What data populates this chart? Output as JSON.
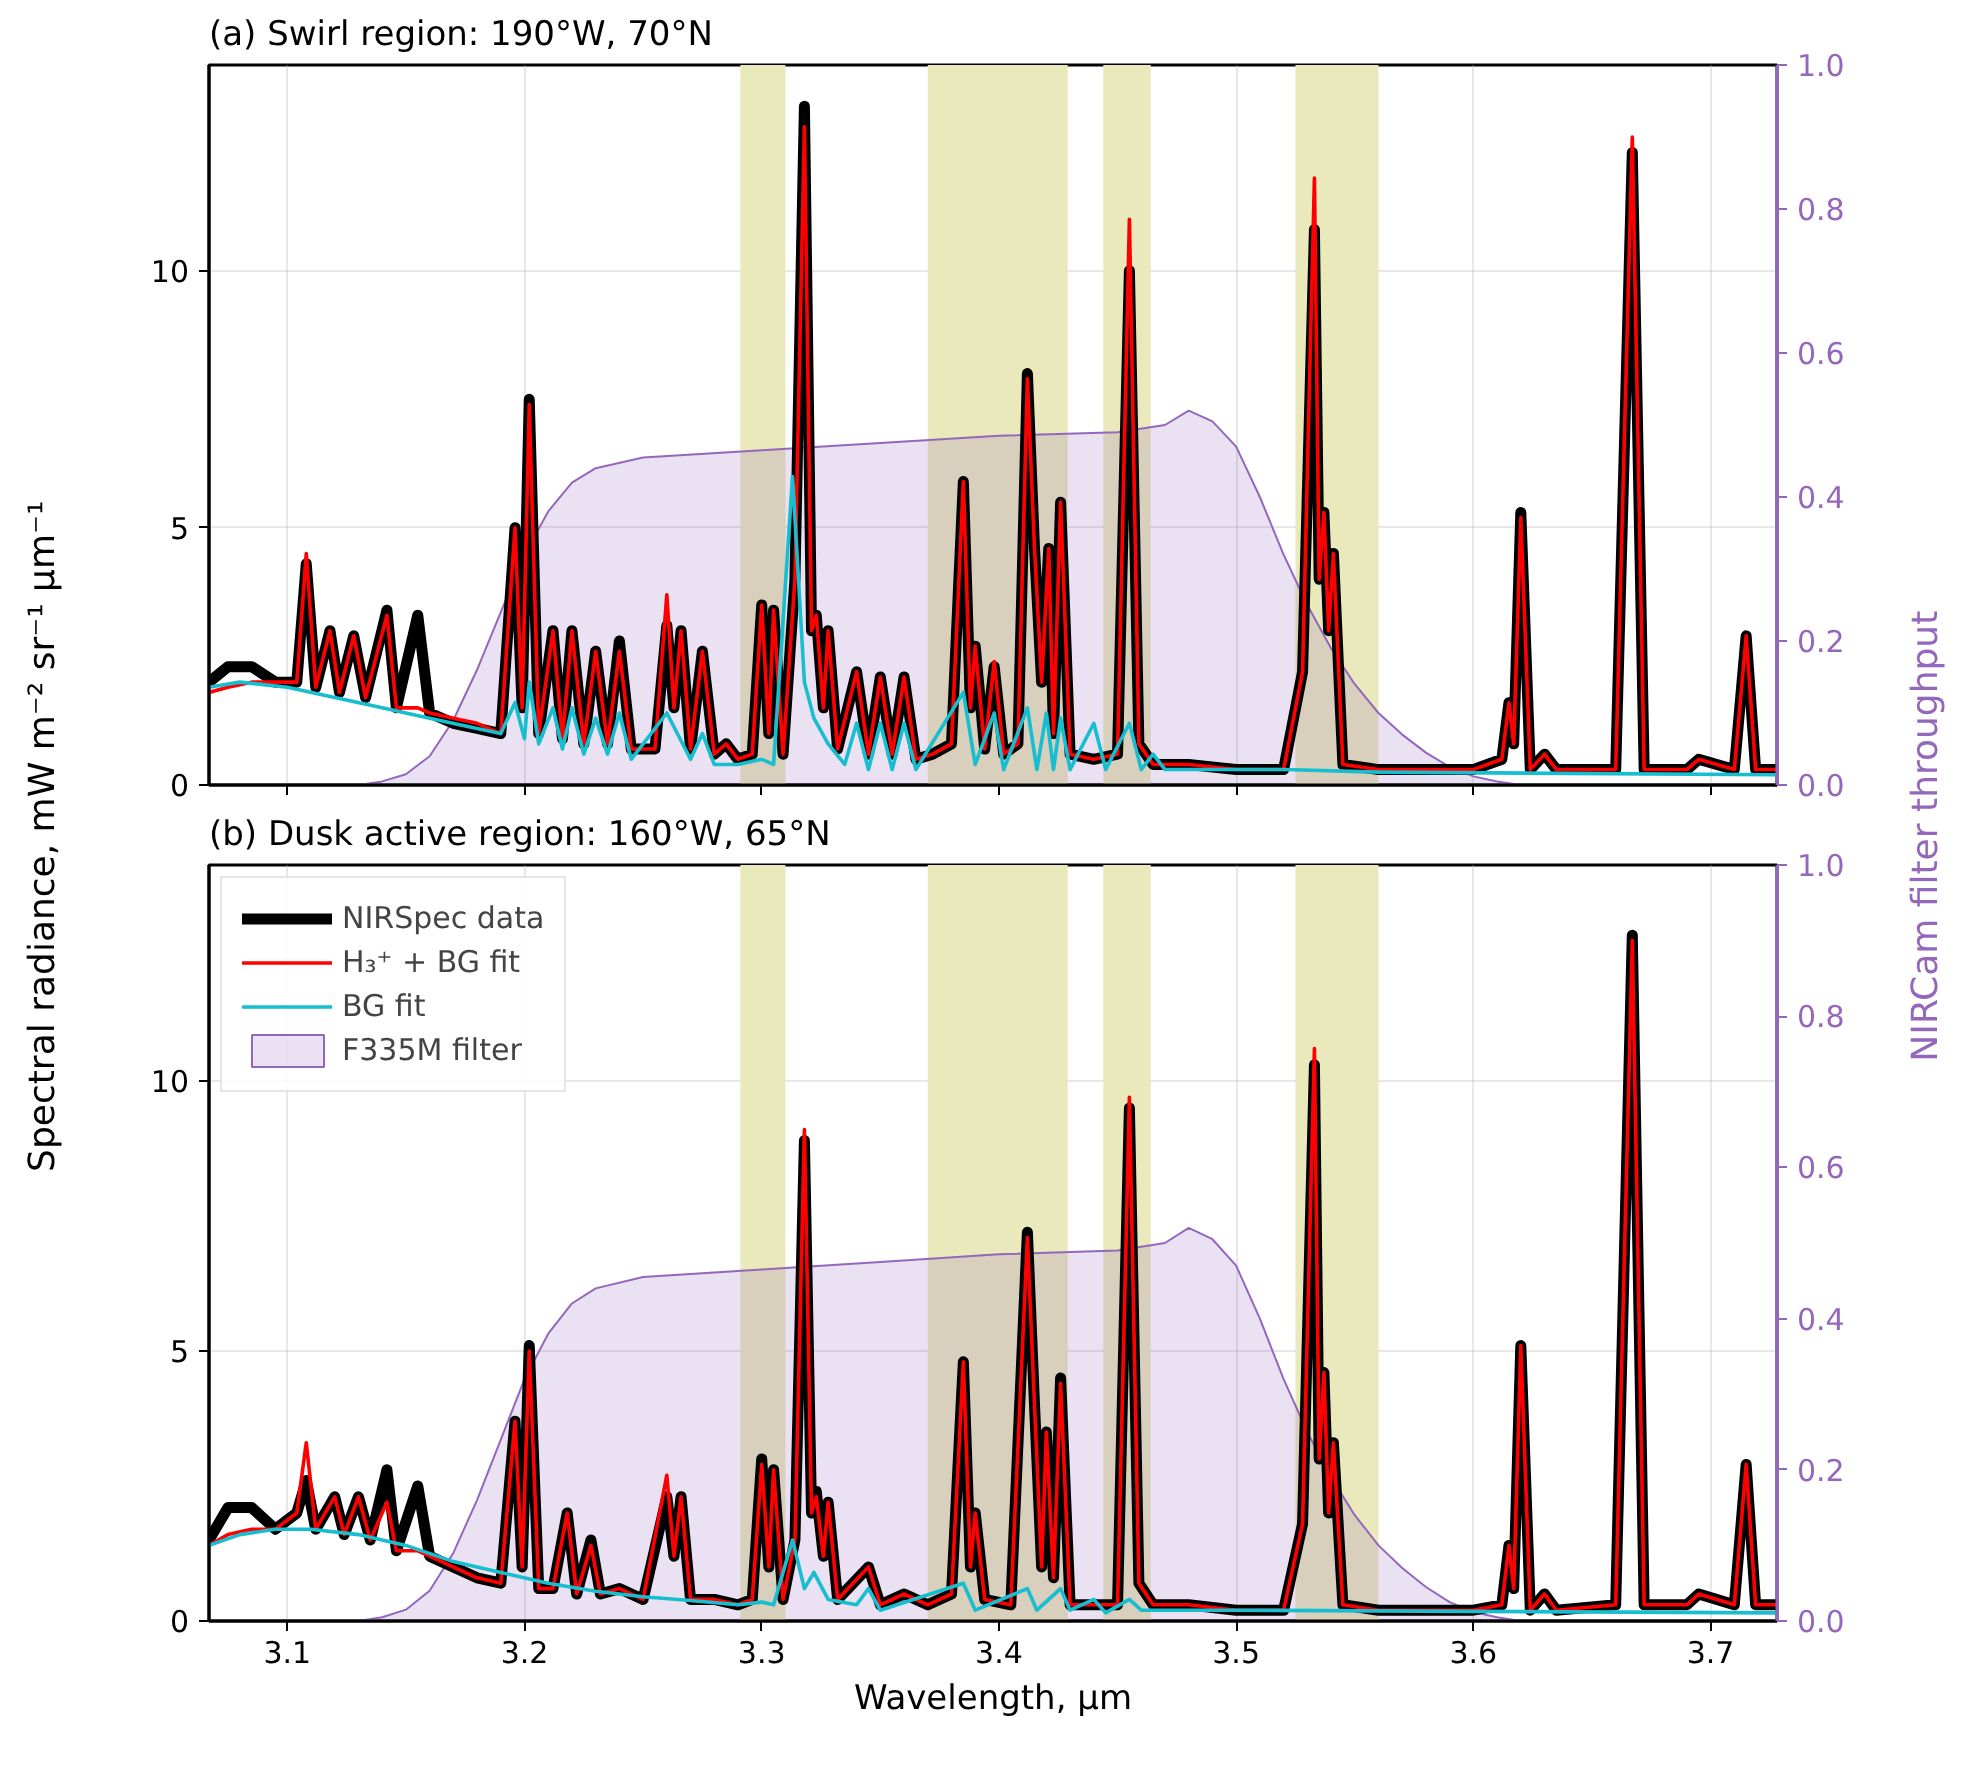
{
  "chart_data": [
    {
      "type": "line",
      "title": "(a) Swirl region: 190°W, 70°N",
      "ylabel": "Spectral radiance, mW m⁻² sr⁻¹ µm⁻¹",
      "y2label": "NIRCam filter throughput",
      "xlim": [
        3.067,
        3.728
      ],
      "ylim": [
        0,
        14
      ],
      "y2lim": [
        0,
        1
      ],
      "xticks": [
        3.1,
        3.2,
        3.3,
        3.4,
        3.5,
        3.6,
        3.7
      ],
      "yticks": [
        0,
        5,
        10
      ],
      "y2ticks": [
        {
          "value": 0,
          "label": "0.0"
        },
        {
          "value": 0.2,
          "label": "0.2"
        },
        {
          "value": 0.4,
          "label": "0.4"
        },
        {
          "value": 0.6,
          "label": "0.6"
        },
        {
          "value": 0.8,
          "label": "0.8"
        },
        {
          "value": 1,
          "label": "1.0"
        }
      ],
      "tick_labels": "y",
      "grid": true,
      "legend": false,
      "bands": [
        {
          "axis": "x",
          "from": 3.291,
          "to": 3.31,
          "color": "#e9e9bc"
        },
        {
          "axis": "x",
          "from": 3.37,
          "to": 3.429,
          "color": "#e9e9bc"
        },
        {
          "axis": "x",
          "from": 3.444,
          "to": 3.464,
          "color": "#e9e9bc"
        },
        {
          "axis": "x",
          "from": 3.525,
          "to": 3.56,
          "color": "#e9e9bc"
        }
      ],
      "x": [
        3.067,
        3.075,
        3.085,
        3.095,
        3.104,
        3.108,
        3.112,
        3.118,
        3.122,
        3.128,
        3.133,
        3.142,
        3.146,
        3.155,
        3.16,
        3.17,
        3.18,
        3.19,
        3.196,
        3.199,
        3.202,
        3.206,
        3.212,
        3.216,
        3.22,
        3.225,
        3.23,
        3.235,
        3.24,
        3.245,
        3.255,
        3.26,
        3.263,
        3.266,
        3.27,
        3.275,
        3.28,
        3.285,
        3.29,
        3.296,
        3.3,
        3.303,
        3.305,
        3.309,
        3.314,
        3.318,
        3.321,
        3.323,
        3.326,
        3.328,
        3.332,
        3.34,
        3.345,
        3.35,
        3.355,
        3.36,
        3.365,
        3.372,
        3.38,
        3.385,
        3.388,
        3.39,
        3.394,
        3.398,
        3.402,
        3.408,
        3.412,
        3.415,
        3.418,
        3.421,
        3.423,
        3.426,
        3.43,
        3.44,
        3.45,
        3.455,
        3.459,
        3.465,
        3.48,
        3.5,
        3.52,
        3.528,
        3.533,
        3.535,
        3.537,
        3.539,
        3.541,
        3.545,
        3.56,
        3.6,
        3.612,
        3.615,
        3.617,
        3.62,
        3.624,
        3.63,
        3.635,
        3.66,
        3.667,
        3.672,
        3.69,
        3.695,
        3.71,
        3.715,
        3.719,
        3.728
      ],
      "series": [
        {
          "type": "line",
          "color": "#000000",
          "values": [
            2.0,
            2.3,
            2.3,
            2.0,
            2.0,
            4.3,
            1.9,
            3.0,
            1.8,
            2.9,
            1.7,
            3.4,
            1.5,
            3.3,
            1.4,
            1.2,
            1.1,
            1.0,
            5.0,
            1.5,
            7.5,
            1.0,
            3.0,
            0.9,
            3.0,
            0.8,
            2.6,
            0.8,
            2.8,
            0.7,
            0.7,
            3.1,
            1.5,
            3.0,
            0.7,
            2.6,
            0.6,
            0.8,
            0.5,
            0.6,
            3.5,
            1.0,
            3.4,
            0.6,
            4.0,
            13.2,
            3.0,
            3.3,
            1.5,
            3.0,
            0.7,
            2.2,
            0.6,
            2.1,
            0.6,
            2.1,
            0.5,
            0.6,
            0.8,
            5.9,
            1.5,
            2.7,
            0.7,
            2.3,
            0.6,
            0.8,
            8.0,
            4.6,
            2.0,
            4.6,
            1.0,
            5.5,
            0.6,
            0.5,
            0.6,
            10.0,
            0.8,
            0.4,
            0.4,
            0.3,
            0.3,
            2.2,
            10.8,
            4.0,
            5.3,
            3.0,
            4.5,
            0.4,
            0.3,
            0.3,
            0.5,
            1.6,
            0.8,
            5.3,
            0.3,
            0.6,
            0.3,
            0.3,
            12.3,
            0.3,
            0.3,
            0.5,
            0.3,
            2.9,
            0.3,
            0.3
          ]
        },
        {
          "type": "line",
          "color": "#ff0000",
          "values": [
            1.8,
            1.9,
            2.0,
            2.0,
            2.0,
            4.5,
            1.9,
            3.0,
            1.8,
            2.9,
            1.7,
            3.3,
            1.5,
            1.5,
            1.4,
            1.3,
            1.2,
            1.0,
            5.0,
            1.5,
            7.4,
            1.0,
            3.0,
            0.9,
            3.0,
            0.8,
            2.6,
            0.8,
            2.6,
            0.7,
            0.7,
            3.7,
            1.5,
            3.0,
            0.7,
            2.6,
            0.6,
            0.8,
            0.5,
            0.6,
            3.5,
            1.0,
            3.4,
            0.6,
            4.0,
            12.8,
            3.0,
            3.3,
            1.5,
            3.0,
            0.7,
            2.2,
            0.6,
            2.1,
            0.6,
            2.1,
            0.5,
            0.6,
            0.8,
            5.9,
            1.5,
            2.7,
            0.7,
            2.4,
            0.6,
            0.8,
            7.9,
            4.6,
            2.0,
            4.6,
            1.0,
            5.5,
            0.6,
            0.5,
            0.6,
            11.0,
            0.8,
            0.4,
            0.4,
            0.3,
            0.3,
            2.2,
            11.8,
            4.0,
            5.3,
            3.0,
            4.5,
            0.4,
            0.3,
            0.3,
            0.5,
            1.6,
            0.8,
            5.2,
            0.3,
            0.6,
            0.3,
            0.3,
            12.6,
            0.3,
            0.3,
            0.5,
            0.3,
            2.9,
            0.3,
            0.3
          ]
        },
        {
          "type": "line",
          "color": "#17becf",
          "x": [
            3.067,
            3.08,
            3.1,
            3.12,
            3.14,
            3.16,
            3.18,
            3.19,
            3.196,
            3.2,
            3.202,
            3.206,
            3.212,
            3.216,
            3.22,
            3.225,
            3.23,
            3.235,
            3.24,
            3.245,
            3.26,
            3.27,
            3.275,
            3.28,
            3.29,
            3.3,
            3.305,
            3.313,
            3.318,
            3.322,
            3.328,
            3.335,
            3.34,
            3.345,
            3.35,
            3.355,
            3.36,
            3.365,
            3.385,
            3.39,
            3.398,
            3.402,
            3.412,
            3.416,
            3.42,
            3.423,
            3.426,
            3.43,
            3.44,
            3.445,
            3.455,
            3.46,
            3.465,
            3.47,
            3.5,
            3.52,
            3.56,
            3.728
          ],
          "values": [
            1.9,
            2.0,
            1.9,
            1.7,
            1.5,
            1.3,
            1.1,
            1.0,
            1.6,
            0.9,
            2.0,
            0.8,
            1.5,
            0.7,
            1.5,
            0.6,
            1.3,
            0.6,
            1.4,
            0.5,
            1.4,
            0.5,
            1.0,
            0.4,
            0.4,
            0.5,
            0.4,
            6.0,
            2.0,
            1.3,
            0.8,
            0.4,
            1.2,
            0.3,
            1.2,
            0.3,
            1.2,
            0.3,
            1.8,
            0.4,
            1.4,
            0.3,
            1.5,
            0.3,
            1.4,
            0.3,
            1.3,
            0.3,
            1.2,
            0.3,
            1.2,
            0.3,
            0.6,
            0.3,
            0.3,
            0.3,
            0.25,
            0.2
          ]
        },
        {
          "type": "area",
          "axis": "y2",
          "color": "#9467bd",
          "x": [
            3.067,
            3.13,
            3.14,
            3.15,
            3.16,
            3.17,
            3.18,
            3.19,
            3.2,
            3.21,
            3.22,
            3.23,
            3.25,
            3.3,
            3.35,
            3.4,
            3.45,
            3.47,
            3.48,
            3.49,
            3.5,
            3.51,
            3.52,
            3.53,
            3.54,
            3.55,
            3.56,
            3.57,
            3.58,
            3.59,
            3.6,
            3.61,
            3.62,
            3.728
          ],
          "values": [
            0,
            0,
            0.005,
            0.015,
            0.04,
            0.09,
            0.16,
            0.24,
            0.32,
            0.38,
            0.42,
            0.44,
            0.455,
            0.465,
            0.475,
            0.485,
            0.49,
            0.5,
            0.52,
            0.505,
            0.47,
            0.4,
            0.32,
            0.25,
            0.19,
            0.14,
            0.1,
            0.07,
            0.045,
            0.025,
            0.012,
            0.005,
            0,
            0
          ]
        }
      ]
    },
    {
      "type": "line",
      "title": "(b) Dusk active region: 160°W, 65°N",
      "xlabel": "Wavelength, µm",
      "xlim": [
        3.067,
        3.728
      ],
      "ylim": [
        0,
        14
      ],
      "y2lim": [
        0,
        1
      ],
      "xticks": [
        3.1,
        3.2,
        3.3,
        3.4,
        3.5,
        3.6,
        3.7
      ],
      "yticks": [
        0,
        5,
        10
      ],
      "y2ticks": [
        {
          "value": 0,
          "label": "0.0"
        },
        {
          "value": 0.2,
          "label": "0.2"
        },
        {
          "value": 0.4,
          "label": "0.4"
        },
        {
          "value": 0.6,
          "label": "0.6"
        },
        {
          "value": 0.8,
          "label": "0.8"
        },
        {
          "value": 1,
          "label": "1.0"
        }
      ],
      "grid": true,
      "legend": "top left",
      "bands": [
        {
          "axis": "x",
          "from": 3.291,
          "to": 3.31,
          "color": "#e9e9bc"
        },
        {
          "axis": "x",
          "from": 3.37,
          "to": 3.429,
          "color": "#e9e9bc"
        },
        {
          "axis": "x",
          "from": 3.444,
          "to": 3.464,
          "color": "#e9e9bc"
        },
        {
          "axis": "x",
          "from": 3.525,
          "to": 3.56,
          "color": "#e9e9bc"
        }
      ],
      "x": [
        3.067,
        3.075,
        3.085,
        3.095,
        3.104,
        3.108,
        3.112,
        3.12,
        3.124,
        3.13,
        3.135,
        3.142,
        3.146,
        3.155,
        3.16,
        3.17,
        3.18,
        3.19,
        3.196,
        3.199,
        3.202,
        3.206,
        3.212,
        3.218,
        3.222,
        3.228,
        3.232,
        3.24,
        3.25,
        3.26,
        3.263,
        3.266,
        3.27,
        3.28,
        3.29,
        3.296,
        3.3,
        3.303,
        3.305,
        3.309,
        3.314,
        3.318,
        3.321,
        3.323,
        3.326,
        3.328,
        3.332,
        3.345,
        3.35,
        3.36,
        3.37,
        3.38,
        3.385,
        3.388,
        3.39,
        3.394,
        3.405,
        3.412,
        3.415,
        3.418,
        3.42,
        3.423,
        3.426,
        3.43,
        3.45,
        3.455,
        3.459,
        3.465,
        3.48,
        3.5,
        3.52,
        3.528,
        3.533,
        3.535,
        3.537,
        3.539,
        3.541,
        3.545,
        3.56,
        3.6,
        3.612,
        3.615,
        3.617,
        3.62,
        3.624,
        3.63,
        3.635,
        3.66,
        3.667,
        3.672,
        3.69,
        3.695,
        3.71,
        3.715,
        3.719,
        3.728
      ],
      "series": [
        {
          "type": "line",
          "name": "NIRSpec data",
          "color": "#000000",
          "values": [
            1.5,
            2.1,
            2.1,
            1.7,
            2.0,
            2.6,
            1.7,
            2.3,
            1.6,
            2.3,
            1.5,
            2.8,
            1.3,
            2.5,
            1.2,
            1.0,
            0.8,
            0.7,
            3.7,
            1.0,
            5.1,
            0.6,
            0.6,
            2.0,
            0.5,
            1.5,
            0.5,
            0.6,
            0.4,
            2.3,
            1.2,
            2.3,
            0.4,
            0.4,
            0.3,
            0.4,
            3.0,
            1.0,
            2.8,
            0.4,
            1.5,
            8.9,
            2.0,
            2.4,
            1.2,
            2.2,
            0.4,
            1.0,
            0.3,
            0.5,
            0.3,
            0.5,
            4.8,
            1.0,
            2.0,
            0.4,
            0.3,
            7.2,
            4.0,
            1.0,
            3.5,
            0.8,
            4.5,
            0.3,
            0.3,
            9.5,
            0.7,
            0.3,
            0.3,
            0.2,
            0.2,
            1.8,
            10.3,
            3.0,
            4.6,
            2.0,
            3.3,
            0.3,
            0.2,
            0.2,
            0.3,
            1.4,
            0.6,
            5.1,
            0.2,
            0.5,
            0.2,
            0.3,
            12.7,
            0.3,
            0.3,
            0.5,
            0.3,
            2.9,
            0.3,
            0.3
          ]
        },
        {
          "type": "line",
          "name": "H₃⁺ + BG fit",
          "color": "#ff0000",
          "values": [
            1.4,
            1.6,
            1.7,
            1.7,
            2.0,
            3.3,
            1.7,
            2.3,
            1.6,
            2.3,
            1.5,
            2.2,
            1.3,
            1.3,
            1.2,
            1.0,
            0.8,
            0.7,
            3.7,
            1.0,
            5.0,
            0.6,
            0.6,
            2.0,
            0.5,
            1.4,
            0.5,
            0.6,
            0.4,
            2.7,
            1.2,
            2.3,
            0.4,
            0.4,
            0.3,
            0.4,
            2.9,
            1.0,
            2.8,
            0.4,
            1.5,
            9.1,
            2.0,
            2.3,
            1.2,
            2.2,
            0.4,
            1.0,
            0.3,
            0.5,
            0.3,
            0.5,
            4.8,
            1.0,
            2.0,
            0.4,
            0.3,
            7.1,
            4.0,
            1.0,
            3.5,
            0.8,
            4.4,
            0.3,
            0.3,
            9.7,
            0.7,
            0.3,
            0.3,
            0.2,
            0.2,
            1.8,
            10.6,
            3.0,
            4.6,
            2.0,
            3.3,
            0.3,
            0.2,
            0.2,
            0.3,
            1.4,
            0.6,
            5.1,
            0.2,
            0.5,
            0.2,
            0.3,
            12.6,
            0.3,
            0.3,
            0.5,
            0.3,
            2.9,
            0.3,
            0.3
          ]
        },
        {
          "type": "line",
          "name": "BG fit",
          "color": "#17becf",
          "x": [
            3.067,
            3.08,
            3.095,
            3.11,
            3.13,
            3.15,
            3.17,
            3.19,
            3.21,
            3.23,
            3.25,
            3.27,
            3.29,
            3.3,
            3.305,
            3.313,
            3.318,
            3.322,
            3.328,
            3.34,
            3.345,
            3.35,
            3.385,
            3.39,
            3.412,
            3.416,
            3.426,
            3.43,
            3.44,
            3.445,
            3.455,
            3.46,
            3.5,
            3.728
          ],
          "values": [
            1.4,
            1.6,
            1.7,
            1.7,
            1.6,
            1.4,
            1.1,
            0.9,
            0.7,
            0.55,
            0.45,
            0.38,
            0.3,
            0.35,
            0.3,
            1.5,
            0.6,
            0.9,
            0.4,
            0.3,
            0.6,
            0.2,
            0.7,
            0.2,
            0.6,
            0.2,
            0.6,
            0.2,
            0.4,
            0.15,
            0.4,
            0.2,
            0.2,
            0.15
          ]
        },
        {
          "type": "area",
          "name": "F335M filter",
          "axis": "y2",
          "color": "#9467bd",
          "x": [
            3.067,
            3.13,
            3.14,
            3.15,
            3.16,
            3.17,
            3.18,
            3.19,
            3.2,
            3.21,
            3.22,
            3.23,
            3.25,
            3.3,
            3.35,
            3.4,
            3.45,
            3.47,
            3.48,
            3.49,
            3.5,
            3.51,
            3.52,
            3.53,
            3.54,
            3.55,
            3.56,
            3.57,
            3.58,
            3.59,
            3.6,
            3.61,
            3.62,
            3.728
          ],
          "values": [
            0,
            0,
            0.005,
            0.015,
            0.04,
            0.09,
            0.16,
            0.24,
            0.32,
            0.38,
            0.42,
            0.44,
            0.455,
            0.465,
            0.475,
            0.485,
            0.49,
            0.5,
            0.52,
            0.505,
            0.47,
            0.4,
            0.32,
            0.25,
            0.19,
            0.14,
            0.1,
            0.07,
            0.045,
            0.025,
            0.012,
            0.005,
            0,
            0
          ]
        }
      ]
    }
  ]
}
